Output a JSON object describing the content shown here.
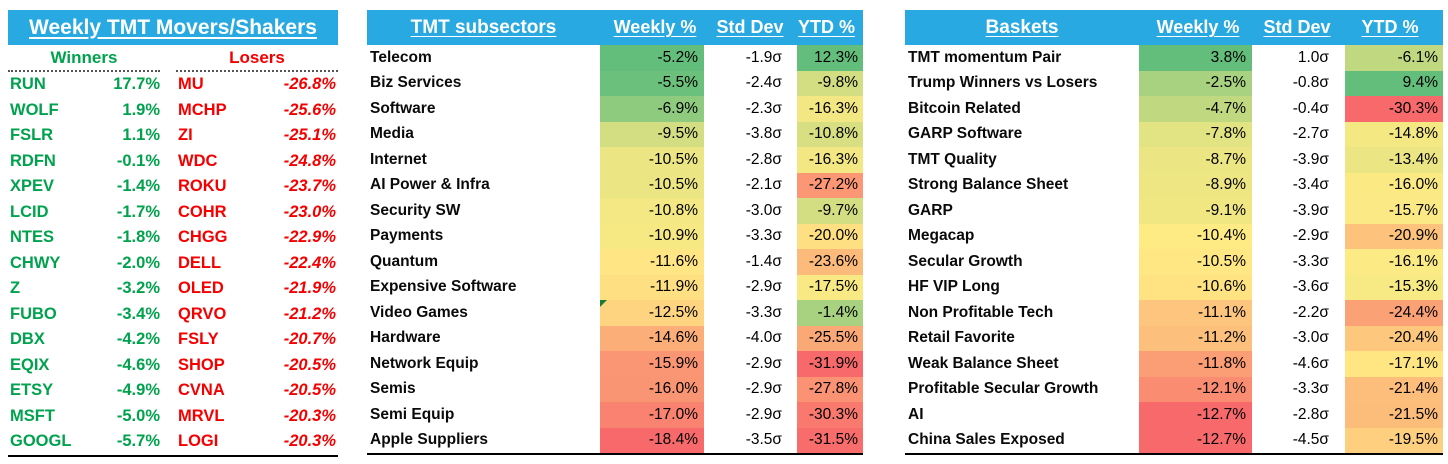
{
  "colors": {
    "band_blue": "#29A9E1",
    "winner_green": "#00A24D",
    "loser_red": "#F50000",
    "scale_low": "#F8696B",
    "scale_mid": "#FFEB84",
    "scale_high": "#63BE7B"
  },
  "units": {
    "pct": "%",
    "std": "σ"
  },
  "panels": {
    "movers": {
      "title": "Weekly TMT Movers/Shakers",
      "winners_label": "Winners",
      "losers_label": "Losers"
    },
    "subsectors": {
      "title": "TMT subsectors",
      "headers": {
        "weekly": "Weekly %",
        "std": "Std Dev",
        "ytd": "YTD %"
      },
      "flag_row_index": 10
    },
    "baskets": {
      "title": "Baskets",
      "headers": {
        "weekly": "Weekly %",
        "std": "Std Dev",
        "ytd": "YTD %"
      }
    }
  },
  "chart_data": [
    {
      "type": "table",
      "title": "Weekly TMT Movers/Shakers",
      "columns": [
        "Winner Ticker",
        "Winner Weekly %",
        "Loser Ticker",
        "Loser Weekly %"
      ],
      "rows": [
        [
          "RUN",
          "17.7%",
          "MU",
          "-26.8%"
        ],
        [
          "WOLF",
          "1.9%",
          "MCHP",
          "-25.6%"
        ],
        [
          "FSLR",
          "1.1%",
          "ZI",
          "-25.1%"
        ],
        [
          "RDFN",
          "-0.1%",
          "WDC",
          "-24.8%"
        ],
        [
          "XPEV",
          "-1.4%",
          "ROKU",
          "-23.7%"
        ],
        [
          "LCID",
          "-1.7%",
          "COHR",
          "-23.0%"
        ],
        [
          "NTES",
          "-1.8%",
          "CHGG",
          "-22.9%"
        ],
        [
          "CHWY",
          "-2.0%",
          "DELL",
          "-22.4%"
        ],
        [
          "Z",
          "-3.2%",
          "OLED",
          "-21.9%"
        ],
        [
          "FUBO",
          "-3.4%",
          "QRVO",
          "-21.2%"
        ],
        [
          "DBX",
          "-4.2%",
          "FSLY",
          "-20.7%"
        ],
        [
          "EQIX",
          "-4.6%",
          "SHOP",
          "-20.5%"
        ],
        [
          "ETSY",
          "-4.9%",
          "CVNA",
          "-20.5%"
        ],
        [
          "MSFT",
          "-5.0%",
          "MRVL",
          "-20.3%"
        ],
        [
          "GOOGL",
          "-5.7%",
          "LOGI",
          "-20.3%"
        ]
      ]
    },
    {
      "type": "table",
      "title": "TMT subsectors",
      "columns": [
        "TMT subsectors",
        "Weekly %",
        "Std Dev",
        "YTD %"
      ],
      "color_scale": "red-yellow-green, min/median/max, applied to Weekly % and YTD % columns",
      "rows": [
        [
          "Telecom",
          -5.2,
          -1.9,
          12.3
        ],
        [
          "Biz Services",
          -5.5,
          -2.4,
          -9.8
        ],
        [
          "Software",
          -6.9,
          -2.3,
          -16.3
        ],
        [
          "Media",
          -9.5,
          -3.8,
          -10.8
        ],
        [
          "Internet",
          -10.5,
          -2.8,
          -16.3
        ],
        [
          "AI Power & Infra",
          -10.5,
          -2.1,
          -27.2
        ],
        [
          "Security SW",
          -10.8,
          -3.0,
          -9.7
        ],
        [
          "Payments",
          -10.9,
          -3.3,
          -20.0
        ],
        [
          "Quantum",
          -11.6,
          -1.4,
          -23.6
        ],
        [
          "Expensive Software",
          -11.9,
          -2.9,
          -17.5
        ],
        [
          "Video Games",
          -12.5,
          -3.3,
          -1.4
        ],
        [
          "Hardware",
          -14.6,
          -4.0,
          -25.5
        ],
        [
          "Network Equip",
          -15.9,
          -2.9,
          -31.9
        ],
        [
          "Semis",
          -16.0,
          -2.9,
          -27.8
        ],
        [
          "Semi Equip",
          -17.0,
          -2.9,
          -30.3
        ],
        [
          "Apple Suppliers",
          -18.4,
          -3.5,
          -31.5
        ]
      ]
    },
    {
      "type": "table",
      "title": "Baskets",
      "columns": [
        "Baskets",
        "Weekly %",
        "Std Dev",
        "YTD %"
      ],
      "color_scale": "red-yellow-green, min/median/max, applied to Weekly % and YTD % columns",
      "rows": [
        [
          "TMT momentum Pair",
          3.8,
          1.0,
          -6.1
        ],
        [
          "Trump Winners vs Losers",
          -2.5,
          -0.8,
          9.4
        ],
        [
          "Bitcoin Related",
          -4.7,
          -0.4,
          -30.3
        ],
        [
          "GARP Software",
          -7.8,
          -2.7,
          -14.8
        ],
        [
          "TMT Quality",
          -8.7,
          -3.9,
          -13.4
        ],
        [
          "Strong Balance Sheet",
          -8.9,
          -3.4,
          -16.0
        ],
        [
          "GARP",
          -9.1,
          -3.9,
          -15.7
        ],
        [
          "Megacap",
          -10.4,
          -2.9,
          -20.9
        ],
        [
          "Secular Growth",
          -10.5,
          -3.3,
          -16.1
        ],
        [
          "HF VIP Long",
          -10.6,
          -3.6,
          -15.3
        ],
        [
          "Non Profitable Tech",
          -11.1,
          -2.2,
          -24.4
        ],
        [
          "Retail Favorite",
          -11.2,
          -3.0,
          -20.4
        ],
        [
          "Weak Balance Sheet",
          -11.8,
          -4.6,
          -17.1
        ],
        [
          "Profitable Secular Growth",
          -12.1,
          -3.3,
          -21.4
        ],
        [
          "AI",
          -12.7,
          -2.8,
          -21.5
        ],
        [
          "China Sales Exposed",
          -12.7,
          -4.5,
          -19.5
        ]
      ]
    }
  ]
}
